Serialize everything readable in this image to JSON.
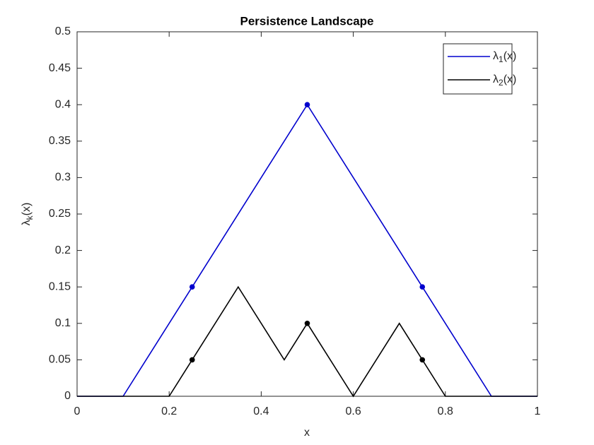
{
  "chart_data": {
    "type": "line",
    "title": "Persistence Landscape",
    "x_label": "x",
    "y_label": "λk(x)",
    "xlim": [
      0,
      1
    ],
    "ylim": [
      0,
      0.5
    ],
    "xticks": [
      0,
      0.2,
      0.4,
      0.6,
      0.8,
      1
    ],
    "yticks": [
      0,
      0.05,
      0.1,
      0.15,
      0.2,
      0.25,
      0.3,
      0.35,
      0.4,
      0.45,
      0.5
    ],
    "legend": "upper right",
    "series": [
      {
        "name": "λ1(x)",
        "color": "#0000cd",
        "x": [
          0,
          0.1,
          0.5,
          0.9,
          1
        ],
        "values": [
          0,
          0,
          0.4,
          0,
          0
        ],
        "marker_x": [
          0.25,
          0.5,
          0.75
        ],
        "marker_values": [
          0.15,
          0.4,
          0.15
        ]
      },
      {
        "name": "λ2(x)",
        "color": "#000000",
        "x": [
          0,
          0.2,
          0.35,
          0.45,
          0.5,
          0.6,
          0.7,
          0.8,
          1
        ],
        "values": [
          0,
          0,
          0.15,
          0.05,
          0.1,
          0,
          0.1,
          0,
          0
        ],
        "marker_x": [
          0.25,
          0.5,
          0.75
        ],
        "marker_values": [
          0.05,
          0.1,
          0.05
        ]
      }
    ]
  }
}
